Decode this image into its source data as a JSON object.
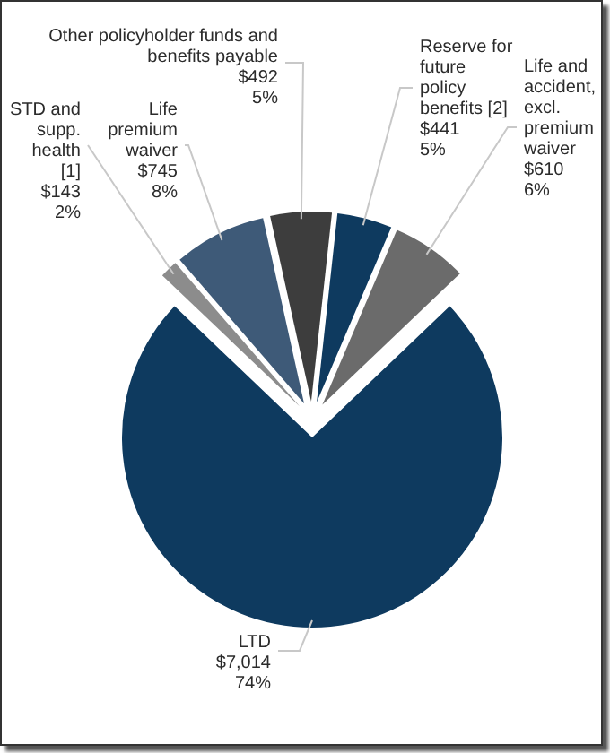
{
  "chart_data": {
    "type": "pie",
    "categories": [
      "LTD",
      "STD and supp. health [1]",
      "Life premium waiver",
      "Other policyholder funds and benefits payable",
      "Reserve for future policy benefits [2]",
      "Life and accident, excl. premium waiver"
    ],
    "values": [
      7014,
      143,
      745,
      492,
      441,
      610
    ],
    "colors": [
      "#0e3a5f",
      "#8c8c8c",
      "#3e5a78",
      "#3d3d3d",
      "#0e3a5f",
      "#6b6b6b"
    ],
    "value_labels": [
      "$7,014\n74%",
      "$143\n2%",
      "$745\n8%",
      "$492\n5%",
      "$441\n5%",
      "$610\n6%"
    ],
    "legend": false
  }
}
